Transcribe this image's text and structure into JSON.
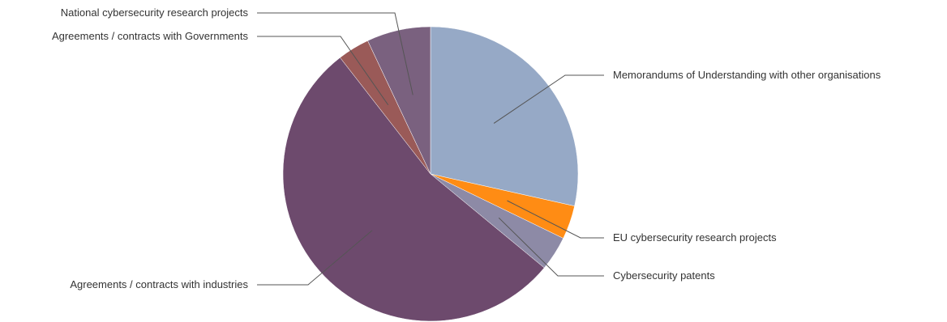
{
  "chart_data": {
    "type": "pie",
    "title": "",
    "start_angle_deg": 0,
    "direction": "clockwise",
    "slices": [
      {
        "label": "Memorandums of Understanding with other organisations",
        "value": 28.5,
        "color": "#96a9c6"
      },
      {
        "label": "EU cybersecurity research projects",
        "value": 3.7,
        "color": "#ff8c14"
      },
      {
        "label": "Cybersecurity patents",
        "value": 3.8,
        "color": "#8d8aa6"
      },
      {
        "label": "Agreements / contracts with industries",
        "value": 53.5,
        "color": "#6d4a6d"
      },
      {
        "label": "Agreements / contracts with Governments",
        "value": 3.5,
        "color": "#9a5a58"
      },
      {
        "label": "National cybersecurity research projects",
        "value": 7.0,
        "color": "#7a617f"
      }
    ]
  }
}
